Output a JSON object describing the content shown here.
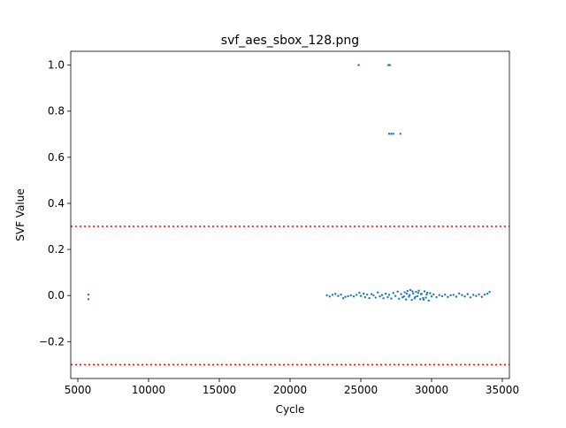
{
  "chart_data": {
    "type": "scatter",
    "title": "svf_aes_sbox_128.png",
    "xlabel": "Cycle",
    "ylabel": "SVF Value",
    "xlim": [
      4500,
      35500
    ],
    "ylim": [
      -0.36,
      1.06
    ],
    "x_ticks": [
      5000,
      10000,
      15000,
      20000,
      25000,
      30000,
      35000
    ],
    "x_tick_labels": [
      "5000",
      "10000",
      "15000",
      "20000",
      "25000",
      "30000",
      "35000"
    ],
    "y_ticks": [
      -0.2,
      0.0,
      0.2,
      0.4,
      0.6,
      0.8,
      1.0
    ],
    "y_tick_labels": [
      "−0.2",
      "0.0",
      "0.2",
      "0.4",
      "0.6",
      "0.8",
      "1.0"
    ],
    "grid": false,
    "series": [
      {
        "color": "#1f77b4",
        "marker": "point",
        "points": [
          [
            5750,
            0.004
          ],
          [
            5750,
            -0.016
          ],
          [
            24850,
            1.0
          ],
          [
            26950,
            1.0
          ],
          [
            27050,
            1.0
          ],
          [
            27000,
            0.702
          ],
          [
            27150,
            0.702
          ],
          [
            27300,
            0.702
          ],
          [
            27800,
            0.702
          ],
          [
            22600,
            0.001
          ],
          [
            22800,
            -0.004
          ],
          [
            23000,
            0.003
          ],
          [
            23200,
            0.007
          ],
          [
            23400,
            -0.002
          ],
          [
            23600,
            0.004
          ],
          [
            23750,
            -0.012
          ],
          [
            23900,
            -0.006
          ],
          [
            24100,
            -0.003
          ],
          [
            24300,
            0.001
          ],
          [
            24500,
            -0.004
          ],
          [
            24700,
            0.003
          ],
          [
            24900,
            0.012
          ],
          [
            25000,
            -0.002
          ],
          [
            25200,
            0.008
          ],
          [
            25300,
            -0.007
          ],
          [
            25450,
            0.004
          ],
          [
            25600,
            -0.011
          ],
          [
            25750,
            0.006
          ],
          [
            25900,
            0.001
          ],
          [
            26050,
            -0.009
          ],
          [
            26200,
            0.013
          ],
          [
            26350,
            -0.004
          ],
          [
            26500,
            0.002
          ],
          [
            26600,
            -0.012
          ],
          [
            26750,
            0.008
          ],
          [
            26900,
            -0.007
          ],
          [
            27000,
            0.003
          ],
          [
            27150,
            -0.013
          ],
          [
            27300,
            0.011
          ],
          [
            27450,
            -0.002
          ],
          [
            27600,
            0.017
          ],
          [
            27700,
            -0.014
          ],
          [
            27850,
            0.006
          ],
          [
            27950,
            -0.008
          ],
          [
            28100,
            0.014
          ],
          [
            28200,
            -0.017
          ],
          [
            28300,
            0.02
          ],
          [
            28400,
            -0.005
          ],
          [
            28500,
            0.024
          ],
          [
            28600,
            -0.019
          ],
          [
            28700,
            0.009
          ],
          [
            28800,
            -0.012
          ],
          [
            28900,
            0.016
          ],
          [
            29000,
            -0.003
          ],
          [
            29100,
            0.021
          ],
          [
            29200,
            -0.016
          ],
          [
            29300,
            0.007
          ],
          [
            29400,
            -0.011
          ],
          [
            29500,
            0.018
          ],
          [
            29600,
            -0.009
          ],
          [
            29700,
            0.012
          ],
          [
            29800,
            -0.022
          ],
          [
            29900,
            0.01
          ],
          [
            30000,
            -0.004
          ],
          [
            30150,
            0.005
          ],
          [
            30350,
            -0.007
          ],
          [
            30550,
            0.002
          ],
          [
            30750,
            -0.003
          ],
          [
            30950,
            0.004
          ],
          [
            31150,
            -0.006
          ],
          [
            31350,
            0.001
          ],
          [
            31550,
            0.003
          ],
          [
            31750,
            -0.005
          ],
          [
            31950,
            0.009
          ],
          [
            32150,
            0.002
          ],
          [
            32350,
            -0.004
          ],
          [
            32550,
            0.006
          ],
          [
            32750,
            -0.008
          ],
          [
            32950,
            0.003
          ],
          [
            33150,
            -0.002
          ],
          [
            33350,
            0.005
          ],
          [
            33550,
            -0.006
          ],
          [
            33750,
            0.004
          ],
          [
            33950,
            0.008
          ],
          [
            34100,
            0.016
          ],
          [
            28450,
            0.002
          ],
          [
            28650,
            0.018
          ],
          [
            28850,
            -0.006
          ],
          [
            29050,
            0.011
          ],
          [
            29250,
            0.006
          ],
          [
            29450,
            -0.018
          ],
          [
            29650,
            0.004
          ],
          [
            28250,
            0.008
          ],
          [
            28050,
            -0.004
          ]
        ]
      }
    ],
    "threshold_lines": [
      {
        "y": 0.3,
        "color": "#ff0000",
        "style": "dotted"
      },
      {
        "y": -0.3,
        "color": "#ff0000",
        "style": "dotted"
      }
    ]
  }
}
